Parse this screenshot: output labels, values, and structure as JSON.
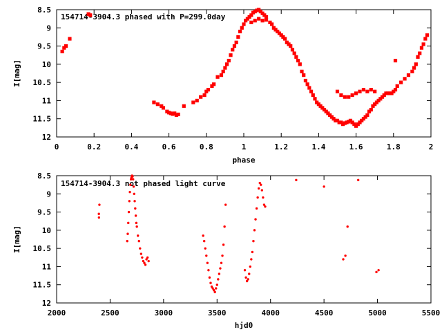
{
  "chart_data": [
    {
      "type": "scatter",
      "title": "154714-3904.3 phased with P=299.0day",
      "xlabel": "phase",
      "ylabel": "I[mag]",
      "xlim": [
        0,
        2
      ],
      "ylim": [
        12,
        8.5
      ],
      "y_inverted": true,
      "xticks": [
        "0",
        "0.2",
        "0.4",
        "0.6",
        "0.8",
        "1",
        "1.2",
        "1.4",
        "1.6",
        "1.8",
        "2"
      ],
      "yticks": [
        "8.5",
        "9",
        "9.5",
        "10",
        "10.5",
        "11",
        "11.5",
        "12"
      ],
      "grid": false,
      "marker_color": "#ff0000",
      "series": [
        {
          "x": [
            0.03,
            0.04,
            0.05,
            0.07,
            0.17,
            0.18,
            0.52,
            0.54,
            0.56,
            0.57,
            0.59,
            0.6,
            0.61,
            0.62,
            0.63,
            0.64,
            0.65,
            0.68,
            0.73,
            0.75,
            0.77,
            0.79,
            0.8,
            0.81,
            0.83,
            0.84,
            0.86,
            0.88,
            0.89,
            0.9,
            0.91,
            0.92,
            0.93,
            0.94,
            0.95,
            0.96,
            0.97,
            0.98,
            0.99,
            1.0,
            1.01,
            1.02,
            1.03,
            1.04,
            1.05,
            1.06,
            1.07,
            1.08,
            1.09,
            1.1,
            1.11,
            1.12,
            1.04,
            1.06,
            1.08,
            1.1,
            1.12,
            1.14,
            1.15,
            1.16,
            1.17,
            1.18,
            1.19,
            1.2,
            1.21,
            1.22,
            1.23,
            1.24,
            1.25,
            1.26,
            1.27,
            1.28,
            1.29,
            1.3,
            1.31,
            1.32,
            1.33,
            1.34,
            1.35,
            1.36,
            1.37,
            1.38,
            1.39,
            1.4,
            1.41,
            1.42,
            1.43,
            1.44,
            1.45,
            1.46,
            1.47,
            1.48,
            1.49,
            1.5,
            1.51,
            1.52,
            1.53,
            1.54,
            1.55,
            1.56,
            1.57,
            1.58,
            1.59,
            1.6,
            1.61,
            1.62,
            1.63,
            1.64,
            1.65,
            1.66,
            1.67,
            1.68,
            1.69,
            1.7,
            1.71,
            1.72,
            1.73,
            1.74,
            1.75,
            1.76,
            1.77,
            1.78,
            1.79,
            1.8,
            1.81,
            1.82,
            1.84,
            1.86,
            1.88,
            1.9,
            1.91,
            1.92,
            1.93,
            1.94,
            1.95,
            1.96,
            1.97,
            1.98,
            1.5,
            1.52,
            1.54,
            1.56,
            1.58,
            1.6,
            1.62,
            1.64,
            1.66,
            1.68,
            1.7,
            1.81
          ],
          "y": [
            9.65,
            9.55,
            9.5,
            9.3,
            8.62,
            8.65,
            11.05,
            11.1,
            11.15,
            11.2,
            11.3,
            11.33,
            11.35,
            11.37,
            11.35,
            11.4,
            11.38,
            11.15,
            11.05,
            11.0,
            10.9,
            10.85,
            10.75,
            10.7,
            10.6,
            10.55,
            10.35,
            10.3,
            10.2,
            10.1,
            10.0,
            9.9,
            9.75,
            9.6,
            9.5,
            9.4,
            9.25,
            9.1,
            9.0,
            8.9,
            8.8,
            8.75,
            8.7,
            8.65,
            8.58,
            8.55,
            8.52,
            8.5,
            8.55,
            8.6,
            8.65,
            8.7,
            8.85,
            8.8,
            8.75,
            8.8,
            8.78,
            8.85,
            8.9,
            9.0,
            9.05,
            9.1,
            9.15,
            9.2,
            9.25,
            9.3,
            9.4,
            9.45,
            9.5,
            9.6,
            9.7,
            9.8,
            9.9,
            10.0,
            10.2,
            10.3,
            10.45,
            10.55,
            10.65,
            10.75,
            10.85,
            10.95,
            11.05,
            11.1,
            11.15,
            11.2,
            11.25,
            11.3,
            11.35,
            11.4,
            11.45,
            11.5,
            11.55,
            11.55,
            11.6,
            11.6,
            11.65,
            11.62,
            11.6,
            11.58,
            11.55,
            11.6,
            11.65,
            11.7,
            11.65,
            11.6,
            11.55,
            11.5,
            11.45,
            11.4,
            11.3,
            11.25,
            11.15,
            11.1,
            11.05,
            11.0,
            10.95,
            10.9,
            10.85,
            10.8,
            10.8,
            10.8,
            10.8,
            10.75,
            10.7,
            10.6,
            10.5,
            10.4,
            10.3,
            10.2,
            10.1,
            10.0,
            9.8,
            9.7,
            9.55,
            9.45,
            9.3,
            9.2,
            10.75,
            10.85,
            10.9,
            10.9,
            10.85,
            10.8,
            10.75,
            10.7,
            10.75,
            10.7,
            10.75,
            9.9
          ]
        }
      ]
    },
    {
      "type": "scatter",
      "title": "154714-3904.3 not phased light curve",
      "xlabel": "hjd0",
      "ylabel": "I[mag]",
      "xlim": [
        2000,
        5500
      ],
      "ylim": [
        12,
        8.5
      ],
      "y_inverted": true,
      "xticks": [
        "2000",
        "2500",
        "3000",
        "3500",
        "4000",
        "4500",
        "5000",
        "5500"
      ],
      "yticks": [
        "8.5",
        "9",
        "9.5",
        "10",
        "10.5",
        "11",
        "11.5",
        "12"
      ],
      "grid": false,
      "marker_color": "#ff0000",
      "series": [
        {
          "x": [
            2395,
            2396,
            2400,
            2660,
            2665,
            2670,
            2675,
            2680,
            2685,
            2690,
            2695,
            2700,
            2705,
            2710,
            2715,
            2720,
            2725,
            2730,
            2735,
            2740,
            2745,
            2750,
            2760,
            2770,
            2780,
            2790,
            2800,
            2810,
            2820,
            2830,
            2840,
            2850,
            2860,
            3370,
            3380,
            3390,
            3400,
            3410,
            3420,
            3430,
            3440,
            3450,
            3460,
            3470,
            3480,
            3490,
            3500,
            3510,
            3520,
            3530,
            3540,
            3550,
            3560,
            3570,
            3580,
            3760,
            3770,
            3780,
            3790,
            3800,
            3810,
            3820,
            3830,
            3840,
            3850,
            3860,
            3870,
            3880,
            3890,
            3900,
            3910,
            3920,
            3930,
            3940,
            3950,
            4240,
            4500,
            4680,
            4700,
            4720,
            4820,
            4990,
            5010
          ],
          "y": [
            9.55,
            9.65,
            9.3,
            10.3,
            10.1,
            9.8,
            9.5,
            9.2,
            8.95,
            8.75,
            8.6,
            8.55,
            8.5,
            8.52,
            8.6,
            8.8,
            9.0,
            9.2,
            9.4,
            9.6,
            9.8,
            9.9,
            10.15,
            10.3,
            10.5,
            10.65,
            10.75,
            10.85,
            10.9,
            10.95,
            10.8,
            10.75,
            10.85,
            10.15,
            10.3,
            10.5,
            10.7,
            10.9,
            11.1,
            11.3,
            11.45,
            11.55,
            11.6,
            11.65,
            11.7,
            11.6,
            11.5,
            11.35,
            11.2,
            11.05,
            10.9,
            10.7,
            10.4,
            9.9,
            9.3,
            11.1,
            11.3,
            11.4,
            11.35,
            11.2,
            11.0,
            10.8,
            10.6,
            10.3,
            10.0,
            9.7,
            9.4,
            9.1,
            8.85,
            8.7,
            8.75,
            8.9,
            9.1,
            9.3,
            9.35,
            8.62,
            8.8,
            10.8,
            10.7,
            9.9,
            8.62,
            11.15,
            11.1
          ]
        }
      ]
    }
  ]
}
